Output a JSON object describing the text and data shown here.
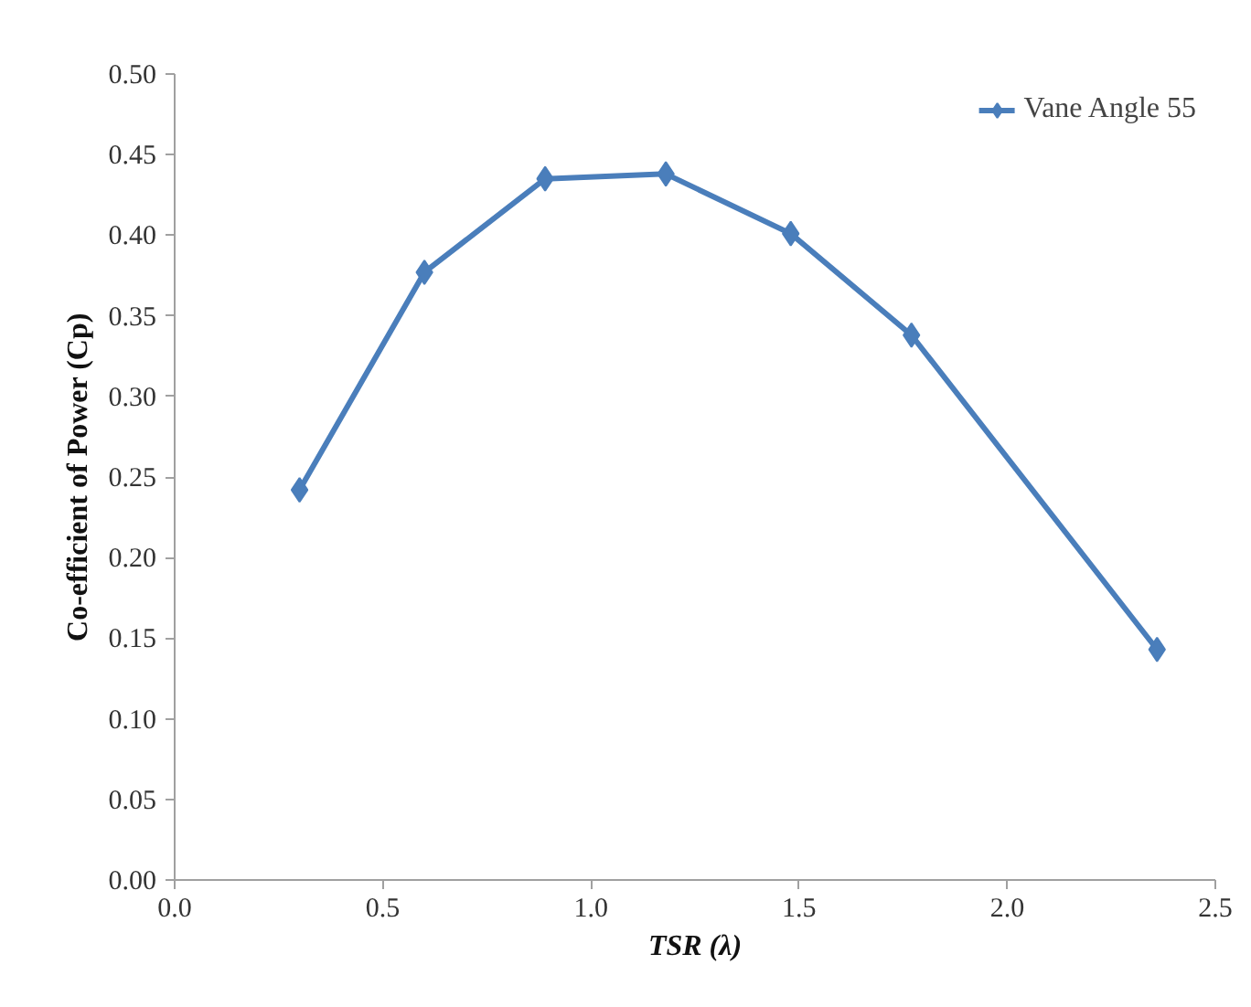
{
  "chart_data": {
    "type": "line",
    "xlabel": "TSR (λ)",
    "ylabel": "Co-efficient of Power (Cp)",
    "x": [
      0.3,
      0.6,
      0.89,
      1.18,
      1.48,
      1.77,
      2.36
    ],
    "series": [
      {
        "name": "Vane Angle 55",
        "color": "#4a7ebb",
        "values": [
          0.242,
          0.377,
          0.435,
          0.438,
          0.401,
          0.338,
          0.143
        ]
      }
    ],
    "xlim": [
      0.0,
      2.5
    ],
    "xticks": [
      {
        "value": 0,
        "label": "0.0"
      },
      0.5,
      {
        "value": 1,
        "label": "1.0"
      },
      1.5,
      {
        "value": 2,
        "label": "2.0"
      },
      2.5
    ],
    "ylim": [
      0.0,
      0.5
    ],
    "yticks": [
      {
        "value": 0,
        "label": "0.00"
      },
      0.05,
      {
        "value": 0.1,
        "label": "0.10"
      },
      0.15,
      {
        "value": 0.2,
        "label": "0.20"
      },
      0.25,
      {
        "value": 0.3,
        "label": "0.30"
      },
      0.35,
      {
        "value": 0.4,
        "label": "0.40"
      },
      0.45,
      {
        "value": 0.5,
        "label": "0.50"
      }
    ],
    "grid": false,
    "legend": "top right",
    "marker": "diamond",
    "line_style": "solid"
  }
}
